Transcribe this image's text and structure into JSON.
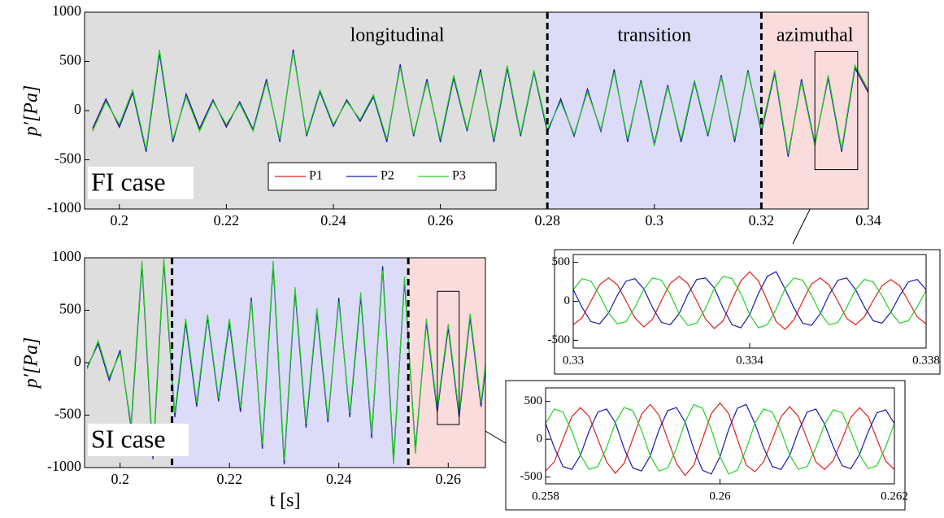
{
  "chart_data": [
    {
      "type": "line",
      "annotation": "FI case",
      "ylabel": "p′[Pa]",
      "legend": true,
      "xlim": [
        0.1935,
        0.34
      ],
      "ylim": [
        -1000,
        1000
      ],
      "xticks": [
        0.2,
        0.22,
        0.24,
        0.26,
        0.28,
        0.3,
        0.32,
        0.34
      ],
      "yticks": [
        -1000,
        -500,
        0,
        500,
        1000
      ],
      "regions": [
        {
          "label": "longitudinal",
          "range": [
            0.1935,
            0.28
          ],
          "color": "#dedede"
        },
        {
          "label": "transition",
          "range": [
            0.28,
            0.32
          ],
          "color": "#dcdcf8"
        },
        {
          "label": "azimuthal",
          "range": [
            0.32,
            0.34
          ],
          "color": "#fadcdc"
        }
      ],
      "dividers": [
        0.28,
        0.32
      ],
      "x": [
        0.195,
        0.1975,
        0.2,
        0.2025,
        0.205,
        0.2075,
        0.21,
        0.2125,
        0.215,
        0.2175,
        0.22,
        0.2225,
        0.225,
        0.2275,
        0.23,
        0.2325,
        0.235,
        0.2375,
        0.24,
        0.2425,
        0.245,
        0.2475,
        0.25,
        0.2525,
        0.255,
        0.2575,
        0.26,
        0.2625,
        0.265,
        0.2675,
        0.27,
        0.2725,
        0.275,
        0.2775,
        0.28,
        0.2825,
        0.285,
        0.2875,
        0.29,
        0.2925,
        0.295,
        0.2975,
        0.3,
        0.3025,
        0.305,
        0.3075,
        0.31,
        0.3125,
        0.315,
        0.3175,
        0.32,
        0.3225,
        0.325,
        0.3275,
        0.33,
        0.3325,
        0.335,
        0.3375,
        0.34
      ],
      "series": [
        {
          "name": "P1",
          "color": "#e0201a",
          "values": [
            -200,
            100,
            -150,
            200,
            -400,
            600,
            -300,
            150,
            -200,
            100,
            -150,
            80,
            -200,
            300,
            -300,
            600,
            -250,
            200,
            -150,
            100,
            -100,
            150,
            -300,
            450,
            -250,
            300,
            -300,
            350,
            -200,
            400,
            -300,
            450,
            -250,
            400,
            -200,
            100,
            -250,
            200,
            -200,
            400,
            -300,
            300,
            -350,
            250,
            -300,
            300,
            -250,
            350,
            -300,
            400,
            -200,
            400,
            -450,
            300,
            -350,
            350,
            -400,
            450,
            200
          ]
        },
        {
          "name": "P2",
          "color": "#1a1ab4",
          "values": [
            -180,
            120,
            -170,
            180,
            -420,
            580,
            -320,
            170,
            -180,
            110,
            -170,
            90,
            -190,
            320,
            -320,
            620,
            -260,
            190,
            -160,
            110,
            -110,
            140,
            -320,
            470,
            -260,
            320,
            -320,
            330,
            -210,
            420,
            -320,
            430,
            -260,
            390,
            -220,
            120,
            -260,
            220,
            -210,
            420,
            -320,
            310,
            -340,
            260,
            -320,
            290,
            -260,
            360,
            -320,
            410,
            -220,
            380,
            -470,
            320,
            -340,
            330,
            -420,
            430,
            180
          ]
        },
        {
          "name": "P3",
          "color": "#22d422",
          "values": [
            -210,
            90,
            -140,
            210,
            -390,
            620,
            -290,
            140,
            -210,
            90,
            -140,
            70,
            -210,
            290,
            -290,
            590,
            -240,
            210,
            -140,
            90,
            -90,
            160,
            -290,
            440,
            -240,
            290,
            -290,
            360,
            -190,
            390,
            -290,
            460,
            -240,
            410,
            -190,
            90,
            -240,
            190,
            -190,
            390,
            -290,
            290,
            -360,
            240,
            -290,
            310,
            -240,
            340,
            -290,
            390,
            -190,
            410,
            -440,
            290,
            -360,
            360,
            -390,
            460,
            210
          ]
        }
      ]
    },
    {
      "type": "line",
      "annotation": "SI case",
      "ylabel": "p′[Pa]",
      "xlabel": "t [s]",
      "xlim": [
        0.1935,
        0.2668
      ],
      "ylim": [
        -1000,
        1000
      ],
      "xticks": [
        0.2,
        0.22,
        0.24,
        0.26
      ],
      "yticks": [
        -1000,
        -500,
        0,
        500,
        1000
      ],
      "regions": [
        {
          "range": [
            0.1935,
            0.2095
          ],
          "color": "#dedede"
        },
        {
          "range": [
            0.2095,
            0.2527
          ],
          "color": "#dcdcf8"
        },
        {
          "range": [
            0.2527,
            0.2668
          ],
          "color": "#fadcdc"
        }
      ],
      "dividers": [
        0.2095,
        0.2527
      ],
      "x": [
        0.194,
        0.196,
        0.198,
        0.2,
        0.202,
        0.204,
        0.206,
        0.208,
        0.21,
        0.212,
        0.214,
        0.216,
        0.218,
        0.22,
        0.222,
        0.224,
        0.226,
        0.228,
        0.23,
        0.232,
        0.234,
        0.236,
        0.238,
        0.24,
        0.242,
        0.244,
        0.246,
        0.248,
        0.25,
        0.252,
        0.254,
        0.256,
        0.258,
        0.26,
        0.262,
        0.264,
        0.266,
        0.268
      ],
      "series": [
        {
          "color": "#e0201a",
          "values": [
            -50,
            200,
            -150,
            100,
            -600,
            950,
            -900,
            980,
            -500,
            400,
            -400,
            450,
            -350,
            400,
            -450,
            600,
            -800,
            950,
            -950,
            700,
            -600,
            500,
            -550,
            600,
            -500,
            650,
            -700,
            900,
            -950,
            800,
            -850,
            400,
            -450,
            350,
            -500,
            450,
            -400,
            500
          ]
        },
        {
          "color": "#1a1ab4",
          "values": [
            -40,
            180,
            -170,
            120,
            -620,
            930,
            -920,
            960,
            -520,
            380,
            -420,
            430,
            -370,
            380,
            -470,
            620,
            -820,
            930,
            -970,
            680,
            -620,
            480,
            -570,
            620,
            -520,
            630,
            -720,
            920,
            -930,
            780,
            -830,
            380,
            -470,
            330,
            -520,
            430,
            -420,
            480
          ]
        },
        {
          "color": "#22d422",
          "values": [
            -60,
            210,
            -140,
            90,
            -580,
            970,
            -880,
            990,
            -480,
            420,
            -380,
            460,
            -340,
            420,
            -430,
            590,
            -780,
            970,
            -930,
            720,
            -580,
            520,
            -530,
            580,
            -480,
            670,
            -680,
            880,
            -970,
            820,
            -870,
            420,
            -430,
            370,
            -480,
            470,
            -380,
            520
          ]
        }
      ]
    },
    {
      "type": "line",
      "zoom_of": 0,
      "xlim": [
        0.33,
        0.338
      ],
      "ylim": [
        -600,
        600
      ],
      "xticks": [
        0.33,
        0.334,
        0.338
      ],
      "yticks": [
        -500,
        0,
        500
      ],
      "x": [
        0.33,
        0.3302,
        0.3304,
        0.3306,
        0.3308,
        0.331,
        0.3312,
        0.3314,
        0.3316,
        0.3318,
        0.332,
        0.3322,
        0.3324,
        0.3326,
        0.3328,
        0.333,
        0.3332,
        0.3334,
        0.3336,
        0.3338,
        0.334,
        0.3342,
        0.3344,
        0.3346,
        0.3348,
        0.335,
        0.3352,
        0.3354,
        0.3356,
        0.3358,
        0.336,
        0.3362,
        0.3364,
        0.3366,
        0.3368,
        0.337,
        0.3372,
        0.3374,
        0.3376,
        0.3378,
        0.338
      ],
      "series": [
        {
          "color": "#e0201a",
          "values": [
            -300,
            -212,
            0,
            212,
            300,
            212,
            0,
            -212,
            -330,
            -230,
            10,
            230,
            320,
            225,
            5,
            -230,
            -350,
            -250,
            20,
            260,
            380,
            260,
            10,
            -260,
            -360,
            -240,
            0,
            220,
            300,
            210,
            0,
            -220,
            -300,
            -200,
            10,
            200,
            280,
            200,
            0,
            -200,
            -290
          ]
        },
        {
          "color": "#1a1ab4",
          "values": [
            150,
            -78,
            -260,
            -290,
            -150,
            78,
            260,
            290,
            160,
            -80,
            -270,
            -300,
            -160,
            90,
            280,
            300,
            170,
            -90,
            -300,
            -340,
            -170,
            100,
            320,
            380,
            160,
            -80,
            -280,
            -310,
            -160,
            80,
            270,
            300,
            150,
            -70,
            -250,
            -280,
            -140,
            70,
            250,
            280,
            150
          ]
        },
        {
          "color": "#22d422",
          "values": [
            150,
            290,
            260,
            78,
            -150,
            -290,
            -260,
            -78,
            160,
            300,
            270,
            90,
            -160,
            -310,
            -280,
            -90,
            170,
            320,
            290,
            100,
            -170,
            -340,
            -300,
            -100,
            160,
            300,
            270,
            80,
            -150,
            -300,
            -270,
            -80,
            150,
            280,
            250,
            70,
            -140,
            -280,
            -250,
            -70,
            140
          ]
        }
      ]
    },
    {
      "type": "line",
      "zoom_of": 1,
      "xlim": [
        0.258,
        0.262
      ],
      "ylim": [
        -590,
        680
      ],
      "xticks": [
        0.258,
        0.26,
        0.262
      ],
      "yticks": [
        -500,
        0,
        500
      ],
      "x": [
        0.258,
        0.2581,
        0.2582,
        0.2583,
        0.2584,
        0.2585,
        0.2586,
        0.2587,
        0.2588,
        0.2589,
        0.259,
        0.2591,
        0.2592,
        0.2593,
        0.2594,
        0.2595,
        0.2596,
        0.2597,
        0.2598,
        0.2599,
        0.26,
        0.2601,
        0.2602,
        0.2603,
        0.2604,
        0.2605,
        0.2606,
        0.2607,
        0.2608,
        0.2609,
        0.261,
        0.2611,
        0.2612,
        0.2613,
        0.2614,
        0.2615,
        0.2616,
        0.2617,
        0.2618,
        0.2619,
        0.262
      ],
      "series": [
        {
          "color": "#e0201a",
          "values": [
            -420,
            -300,
            0,
            300,
            420,
            300,
            0,
            -300,
            -450,
            -320,
            10,
            330,
            460,
            320,
            0,
            -320,
            -480,
            -340,
            0,
            340,
            480,
            340,
            0,
            -340,
            -430,
            -300,
            0,
            300,
            430,
            300,
            0,
            -300,
            -400,
            -280,
            0,
            290,
            420,
            300,
            0,
            -290,
            -400
          ]
        },
        {
          "color": "#1a1ab4",
          "values": [
            210,
            -110,
            -360,
            -400,
            -210,
            110,
            360,
            400,
            220,
            -120,
            -380,
            -420,
            -220,
            120,
            380,
            420,
            230,
            -130,
            -410,
            -460,
            -230,
            130,
            410,
            460,
            210,
            -110,
            -360,
            -400,
            -210,
            110,
            360,
            400,
            200,
            -100,
            -350,
            -390,
            -200,
            100,
            350,
            390,
            210
          ]
        },
        {
          "color": "#22d422",
          "values": [
            210,
            400,
            360,
            110,
            -210,
            -400,
            -360,
            -110,
            220,
            420,
            380,
            120,
            -220,
            -420,
            -380,
            -120,
            230,
            460,
            410,
            130,
            -230,
            -460,
            -410,
            -130,
            210,
            400,
            360,
            110,
            -210,
            -400,
            -360,
            -110,
            200,
            390,
            350,
            100,
            -200,
            -390,
            -350,
            -100,
            210
          ]
        }
      ]
    }
  ]
}
